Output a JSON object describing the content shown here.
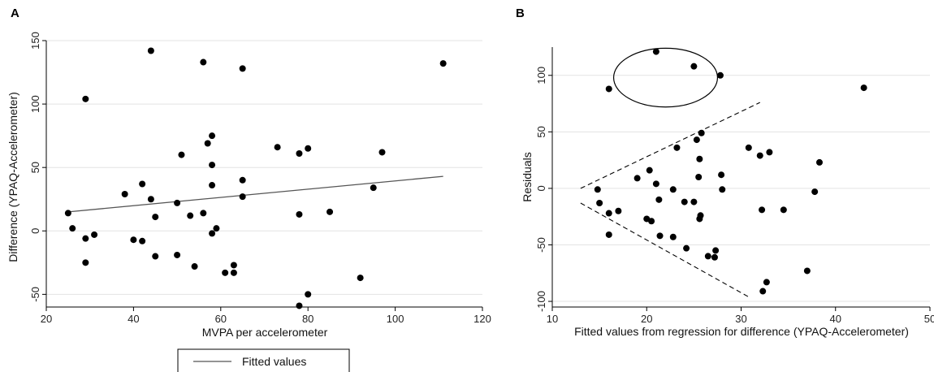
{
  "chart_data": [
    {
      "panel": "A",
      "type": "scatter",
      "xlabel": "MVPA per accelerometer",
      "ylabel": "Difference (YPAQ-Accelerometer)",
      "xlim": [
        20,
        120
      ],
      "ylim": [
        -60,
        150
      ],
      "xticks": [
        20,
        40,
        60,
        80,
        100,
        120
      ],
      "yticks": [
        -50,
        0,
        50,
        100,
        150
      ],
      "grid": true,
      "points": [
        [
          25,
          14
        ],
        [
          26,
          2
        ],
        [
          29,
          104
        ],
        [
          29,
          -6
        ],
        [
          29,
          -25
        ],
        [
          31,
          -3
        ],
        [
          38,
          29
        ],
        [
          40,
          -7
        ],
        [
          42,
          37
        ],
        [
          42,
          -8
        ],
        [
          44,
          142
        ],
        [
          44,
          25
        ],
        [
          45,
          11
        ],
        [
          45,
          -20
        ],
        [
          50,
          22
        ],
        [
          50,
          -19
        ],
        [
          51,
          60
        ],
        [
          53,
          12
        ],
        [
          54,
          -28
        ],
        [
          56,
          133
        ],
        [
          56,
          14
        ],
        [
          57,
          69
        ],
        [
          58,
          36
        ],
        [
          58,
          52
        ],
        [
          58,
          -2
        ],
        [
          58,
          75
        ],
        [
          59,
          2
        ],
        [
          61,
          -33
        ],
        [
          63,
          -27
        ],
        [
          63,
          -33
        ],
        [
          65,
          128
        ],
        [
          65,
          40
        ],
        [
          65,
          27
        ],
        [
          73,
          66
        ],
        [
          78,
          61
        ],
        [
          78,
          -59
        ],
        [
          78,
          13
        ],
        [
          80,
          65
        ],
        [
          80,
          -50
        ],
        [
          85,
          15
        ],
        [
          92,
          -37
        ],
        [
          95,
          34
        ],
        [
          97,
          62
        ],
        [
          111,
          132
        ]
      ],
      "fitted_line": [
        [
          25,
          15
        ],
        [
          111,
          43
        ]
      ],
      "legend": [
        "Fitted values"
      ]
    },
    {
      "panel": "B",
      "type": "scatter",
      "xlabel": "Fitted values from regression for difference (YPAQ-Accelerometer)",
      "ylabel": "Residuals",
      "xlim": [
        10,
        50
      ],
      "ylim": [
        -105,
        125
      ],
      "xticks": [
        10,
        20,
        30,
        40,
        50
      ],
      "yticks": [
        -100,
        -50,
        0,
        50,
        100
      ],
      "grid": true,
      "points": [
        [
          14.8,
          -1
        ],
        [
          15,
          -13
        ],
        [
          16,
          88
        ],
        [
          16,
          -41
        ],
        [
          16,
          -22
        ],
        [
          17,
          -20
        ],
        [
          19,
          9
        ],
        [
          20,
          -27
        ],
        [
          20.3,
          16
        ],
        [
          20.5,
          -29
        ],
        [
          21,
          121
        ],
        [
          21,
          4
        ],
        [
          21.3,
          -10
        ],
        [
          21.4,
          -42
        ],
        [
          22.8,
          -1
        ],
        [
          22.8,
          -43
        ],
        [
          23.2,
          36
        ],
        [
          24,
          -12
        ],
        [
          24.2,
          -53
        ],
        [
          25,
          108
        ],
        [
          25,
          -12
        ],
        [
          25.3,
          43
        ],
        [
          25.5,
          10
        ],
        [
          25.6,
          26
        ],
        [
          25.6,
          -27
        ],
        [
          25.7,
          -24
        ],
        [
          25.8,
          49
        ],
        [
          26.5,
          -60
        ],
        [
          27.2,
          -61
        ],
        [
          27.3,
          -55
        ],
        [
          27.8,
          100
        ],
        [
          27.9,
          12
        ],
        [
          28,
          -1
        ],
        [
          30.8,
          36
        ],
        [
          32,
          29
        ],
        [
          32.2,
          -19
        ],
        [
          32.3,
          -91
        ],
        [
          32.7,
          -83
        ],
        [
          33,
          32
        ],
        [
          34.5,
          -19
        ],
        [
          37,
          -73
        ],
        [
          37.8,
          -3
        ],
        [
          38.3,
          23
        ],
        [
          43,
          89
        ]
      ],
      "dashed_lines": [
        [
          [
            13,
            0
          ],
          [
            32,
            76
          ]
        ],
        [
          [
            13,
            -13
          ],
          [
            31,
            -97
          ]
        ]
      ],
      "ellipse": {
        "cx": 22,
        "cy": 98,
        "rx": 5.5,
        "ry": 26
      }
    }
  ]
}
